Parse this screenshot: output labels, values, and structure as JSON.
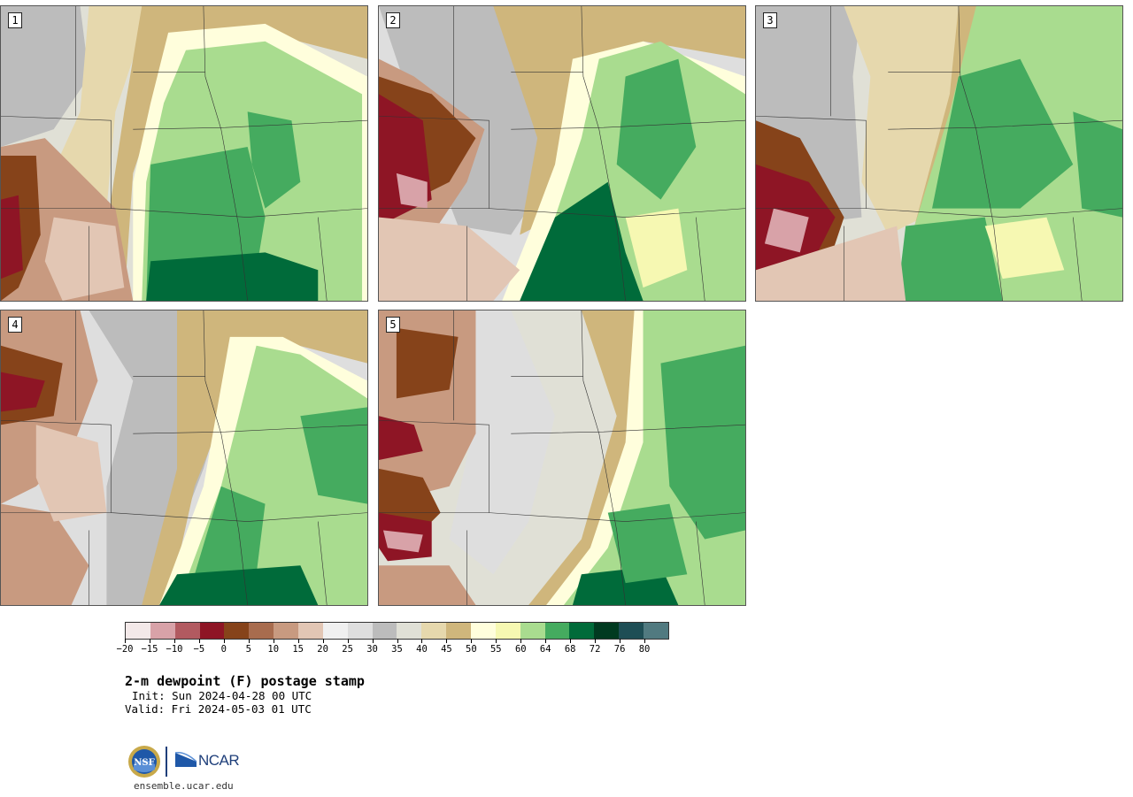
{
  "panels": [
    {
      "number": "1"
    },
    {
      "number": "2"
    },
    {
      "number": "3"
    },
    {
      "number": "4"
    },
    {
      "number": "5"
    }
  ],
  "colorbar": {
    "colors": [
      "#f3e9e9",
      "#d8a2a8",
      "#b25a60",
      "#8e1525",
      "#86431a",
      "#a86c4e",
      "#c89a80",
      "#e2c6b4",
      "#f0f0f0",
      "#dedede",
      "#bcbcbc",
      "#e0e0d6",
      "#e6d8ad",
      "#cfb67c",
      "#fffedc",
      "#f6f8b2",
      "#a9dc8f",
      "#45ab5f",
      "#006b3a",
      "#003a20",
      "#1e4e55",
      "#517a80"
    ],
    "tick_labels": [
      "−20",
      "−15",
      "−10",
      "−5",
      "0",
      "5",
      "10",
      "15",
      "20",
      "25",
      "30",
      "35",
      "40",
      "45",
      "50",
      "55",
      "60",
      "64",
      "68",
      "72",
      "76",
      "80"
    ]
  },
  "title": "2-m dewpoint (F) postage stamp",
  "init": "Init: Sun 2024-04-28 00 UTC",
  "valid": "Valid: Fri 2024-05-03 01 UTC",
  "logo": {
    "nsf_text": "NSF",
    "ncar_text": "NCAR",
    "url": "ensemble.ucar.edu"
  }
}
